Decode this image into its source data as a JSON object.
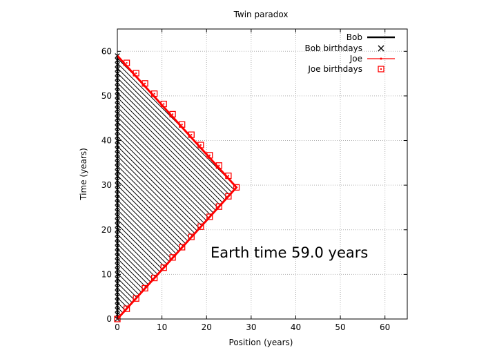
{
  "chart_data": {
    "type": "line",
    "title": "Twin paradox",
    "xlabel": "Position (years)",
    "ylabel": "Time (years)",
    "xlim": [
      0,
      65
    ],
    "ylim": [
      0,
      65
    ],
    "xticks": [
      0,
      10,
      20,
      30,
      40,
      50,
      60
    ],
    "yticks": [
      0,
      10,
      20,
      30,
      40,
      50,
      60
    ],
    "grid": true,
    "legend_position": "top-right",
    "annotation": "Earth time 59.0 years",
    "series": [
      {
        "name": "Bob",
        "color": "#000000",
        "style": "line",
        "x": [
          0,
          0
        ],
        "y": [
          0,
          59
        ]
      },
      {
        "name": "Bob birthdays",
        "color": "#000000",
        "style": "x-marker",
        "x": [
          0,
          0,
          0,
          0,
          0,
          0,
          0,
          0,
          0,
          0,
          0,
          0,
          0,
          0,
          0,
          0,
          0,
          0,
          0,
          0,
          0,
          0,
          0,
          0,
          0,
          0,
          0,
          0,
          0,
          0,
          0,
          0,
          0,
          0,
          0,
          0,
          0,
          0,
          0,
          0,
          0,
          0,
          0,
          0,
          0,
          0,
          0,
          0,
          0,
          0,
          0,
          0,
          0,
          0,
          0,
          0,
          0,
          0,
          0,
          0
        ],
        "y": [
          0,
          1,
          2,
          3,
          4,
          5,
          6,
          7,
          8,
          9,
          10,
          11,
          12,
          13,
          14,
          15,
          16,
          17,
          18,
          19,
          20,
          21,
          22,
          23,
          24,
          25,
          26,
          27,
          28,
          29,
          30,
          31,
          32,
          33,
          34,
          35,
          36,
          37,
          38,
          39,
          40,
          41,
          42,
          43,
          44,
          45,
          46,
          47,
          48,
          49,
          50,
          51,
          52,
          53,
          54,
          55,
          56,
          57,
          58,
          59
        ]
      },
      {
        "name": "Joe",
        "color": "#ff0000",
        "style": "line",
        "x": [
          0,
          26.7,
          0
        ],
        "y": [
          0,
          29.5,
          59
        ]
      },
      {
        "name": "Joe birthdays",
        "color": "#ff0000",
        "style": "square-marker",
        "x": [
          0,
          2.1,
          4.2,
          6.2,
          8.3,
          10.4,
          12.4,
          14.5,
          16.6,
          18.7,
          20.7,
          22.8,
          24.9,
          26.7,
          24.9,
          22.8,
          20.7,
          18.7,
          16.6,
          14.5,
          12.4,
          10.4,
          8.3,
          6.2,
          4.2,
          2.1
        ],
        "y": [
          0,
          2.3,
          4.6,
          6.9,
          9.2,
          11.5,
          13.8,
          16.1,
          18.4,
          20.7,
          22.9,
          25.2,
          27.5,
          29.5,
          32.1,
          34.4,
          36.7,
          39.0,
          41.3,
          43.6,
          45.9,
          48.2,
          50.5,
          52.8,
          55.1,
          57.4
        ]
      }
    ]
  }
}
